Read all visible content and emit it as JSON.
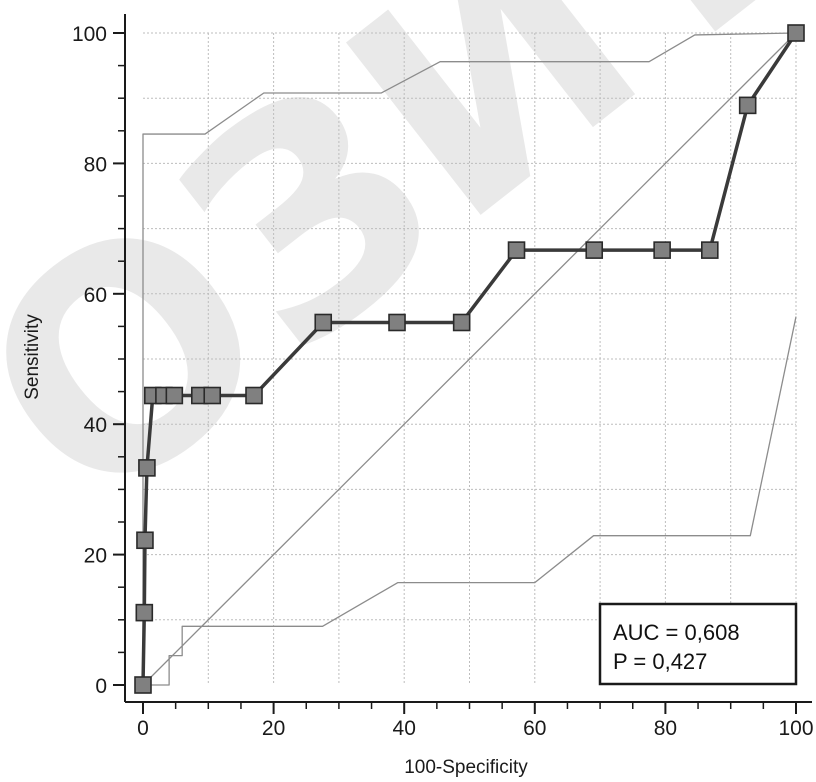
{
  "watermark": "ОЗИТОР",
  "chart_data": {
    "type": "line",
    "xlabel": "100-Specificity",
    "ylabel": "Sensitivity",
    "xlim": [
      0,
      100
    ],
    "ylim": [
      0,
      100
    ],
    "xticks": [
      "0",
      "20",
      "40",
      "60",
      "80",
      "100"
    ],
    "yticks": [
      "0",
      "20",
      "40",
      "60",
      "80",
      "100"
    ],
    "grid": true,
    "series": [
      {
        "style": "roc-curve",
        "color": "#3a3a3a",
        "marker_color": "#808080",
        "x": [
          0,
          0.2,
          0.3,
          0.6,
          1.5,
          3.2,
          4.8,
          8.7,
          10.6,
          17,
          27.6,
          38.9,
          48.8,
          57.2,
          69.1,
          79.5,
          86.8,
          92.6,
          100
        ],
        "y": [
          0,
          11.1,
          22.2,
          33.3,
          44.4,
          44.4,
          44.4,
          44.4,
          44.4,
          44.4,
          55.6,
          55.6,
          55.6,
          66.7,
          66.7,
          66.7,
          66.7,
          88.9,
          100
        ]
      },
      {
        "style": "confidence-upper",
        "color": "#8c8c8c",
        "x": [
          0,
          0,
          9.5,
          18.5,
          36.5,
          45.5,
          77.5,
          84.5,
          100
        ],
        "y": [
          0,
          84.5,
          84.5,
          90.8,
          90.8,
          95.6,
          95.6,
          99.7,
          100
        ]
      },
      {
        "style": "confidence-lower",
        "color": "#8c8c8c",
        "x": [
          0,
          4.0,
          4.0,
          6.0,
          6.0,
          27.5,
          39.0,
          60.0,
          69.0,
          93.0,
          100
        ],
        "y": [
          0,
          0,
          4.5,
          4.5,
          9.0,
          9.0,
          15.7,
          15.7,
          22.9,
          22.9,
          56.5
        ]
      },
      {
        "style": "reference-diagonal",
        "color": "#8c8c8c",
        "x": [
          0,
          100
        ],
        "y": [
          0,
          100
        ]
      }
    ],
    "annotation": {
      "lines": [
        "AUC = 0,608",
        "P = 0,427"
      ],
      "position": "bottom-right"
    }
  }
}
